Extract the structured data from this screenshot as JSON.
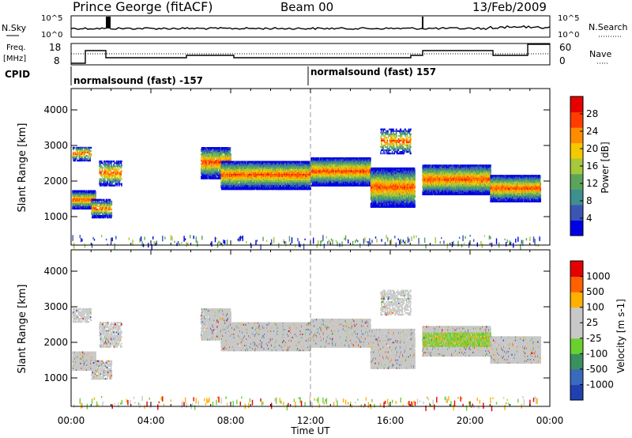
{
  "header": {
    "station": "Prince George (fitACF)",
    "beam": "Beam 00",
    "date": "13/Feb/2009"
  },
  "panels": {
    "nsky_label": "N.Sky",
    "nsearch_label": "N.Search",
    "nsky_ticks": [
      "10^5",
      "10^0"
    ],
    "freq_label_top": "Freq.",
    "freq_label_unit": "[MHz]",
    "freq_ticks": [
      "18",
      "8"
    ],
    "nave_ticks": [
      "60",
      "0"
    ],
    "nave_label": "Nave",
    "cpid_label": "CPID",
    "cpid_1": "normalsound (fast) -157",
    "cpid_2": "normalsound (fast) 157"
  },
  "chart_data": [
    {
      "type": "heatmap",
      "name": "power",
      "ylabel": "Slant Range [km]",
      "yticks": [
        "4000",
        "3000",
        "2000",
        "1000"
      ],
      "ylim": [
        200,
        4600
      ],
      "xlabel": "Time UT",
      "xticks": [
        "00:00",
        "04:00",
        "08:00",
        "12:00",
        "16:00",
        "20:00",
        "00:00"
      ],
      "xlim": [
        0,
        24
      ],
      "colorbar_label": "Power [dB]",
      "colorbar_ticks": [
        "28",
        "24",
        "20",
        "16",
        "12",
        "8",
        "4"
      ],
      "colorbar_colors": [
        "#0000e6",
        "#3a55b4",
        "#3f8f8f",
        "#5aa55a",
        "#a5c83c",
        "#f5c800",
        "#ff8c00",
        "#ff3c00",
        "#e60000"
      ]
    },
    {
      "type": "heatmap",
      "name": "velocity",
      "ylabel": "Slant Range [km]",
      "yticks": [
        "4000",
        "3000",
        "2000",
        "1000"
      ],
      "ylim": [
        200,
        4600
      ],
      "xlabel": "Time UT",
      "xticks": [
        "00:00",
        "04:00",
        "08:00",
        "12:00",
        "16:00",
        "20:00",
        "00:00"
      ],
      "xlim": [
        0,
        24
      ],
      "colorbar_label": "Velocity [m s-1]",
      "colorbar_ticks": [
        "1000",
        "500",
        "100",
        "25",
        "-25",
        "-100",
        "-500",
        "-1000"
      ],
      "colorbar_colors": [
        "#2040b0",
        "#3a6ac0",
        "#3a9060",
        "#6ad030",
        "#c8c8c8",
        "#c8c8c8",
        "#ffb000",
        "#ff6000",
        "#e60000"
      ]
    }
  ],
  "x_axis_title": "Time UT"
}
